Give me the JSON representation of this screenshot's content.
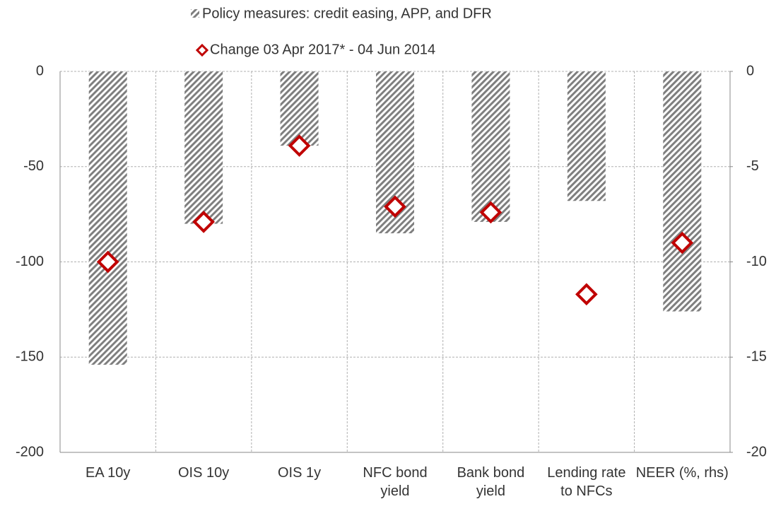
{
  "chart_data": {
    "type": "bar",
    "categories": [
      "EA 10y",
      "OIS 10y",
      "OIS 1y",
      "NFC bond yield",
      "Bank bond yield",
      "Lending rate to NFCs",
      "NEER (%, rhs)"
    ],
    "series": [
      {
        "name": "Policy measures: credit easing, APP, and DFR",
        "type": "bar",
        "color": "#7f7f7f",
        "values": [
          -154,
          -80,
          -39,
          -85,
          -79,
          -68,
          null
        ],
        "y2_values": [
          null,
          null,
          null,
          null,
          null,
          null,
          -12.6
        ]
      },
      {
        "name": "Change 03 Apr 2017* - 04 Jun 2014",
        "type": "diamond",
        "color": "#c00000",
        "values": [
          -100,
          -79,
          -39,
          -71,
          -74,
          -117,
          null
        ],
        "y2_values": [
          null,
          null,
          null,
          null,
          null,
          null,
          -9.0
        ]
      }
    ],
    "ylim": [
      -200,
      0
    ],
    "yticks": [
      0,
      -50,
      -100,
      -150,
      -200
    ],
    "y2lim": [
      -20,
      0
    ],
    "y2ticks": [
      0,
      -5,
      -10,
      -15,
      -20
    ],
    "grid": true
  }
}
